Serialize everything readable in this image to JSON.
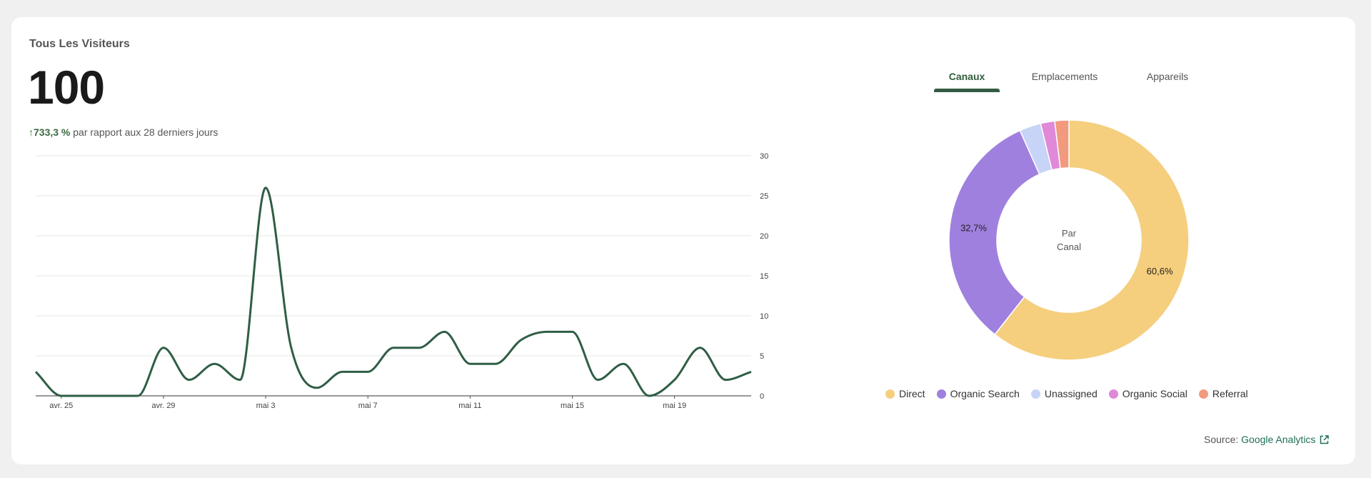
{
  "card": {
    "title": "Tous Les Visiteurs",
    "total": "100",
    "delta_arrow": "↑",
    "delta_percent": "733,3 %",
    "delta_text": "par rapport aux 28 derniers jours"
  },
  "tabs": [
    {
      "label": "Canaux",
      "active": true
    },
    {
      "label": "Emplacements",
      "active": false
    },
    {
      "label": "Appareils",
      "active": false
    }
  ],
  "donut": {
    "center_line1": "Par",
    "center_line2": "Canal"
  },
  "legend": [
    {
      "label": "Direct",
      "color": "#f5cf7e"
    },
    {
      "label": "Organic Search",
      "color": "#9f80de"
    },
    {
      "label": "Unassigned",
      "color": "#c7d3f7"
    },
    {
      "label": "Organic Social",
      "color": "#e089d8"
    },
    {
      "label": "Referral",
      "color": "#f29a7e"
    }
  ],
  "source": {
    "label": "Source:",
    "link": "Google Analytics",
    "icon": "external-link-icon"
  },
  "colors": {
    "line": "#2f5e45",
    "tab_underline": "#335b44"
  },
  "chart_data": [
    {
      "type": "line",
      "x_tick_labels": [
        "avr. 25",
        "avr. 29",
        "mai 3",
        "mai 7",
        "mai 11",
        "mai 15",
        "mai 19"
      ],
      "x_tick_index": [
        1,
        5,
        9,
        13,
        17,
        21,
        25
      ],
      "y_ticks": [
        0,
        5,
        10,
        15,
        20,
        25,
        30
      ],
      "ylim": [
        0,
        30
      ],
      "y_axis_side": "right",
      "grid": true,
      "series": [
        {
          "values": [
            3,
            0,
            0,
            0,
            0,
            6,
            2,
            4,
            2,
            26,
            6,
            1,
            3,
            3,
            6,
            6,
            8,
            4,
            4,
            7,
            8,
            8,
            2,
            4,
            0,
            2,
            6,
            2,
            3
          ]
        }
      ]
    },
    {
      "type": "pie",
      "labels": [
        "Direct",
        "Organic Search",
        "Unassigned",
        "Organic Social",
        "Referral"
      ],
      "values": [
        60.6,
        32.7,
        2.9,
        1.9,
        1.9
      ],
      "data_labels": {
        "Direct": "60,6%",
        "Organic Search": "32,7%"
      }
    }
  ]
}
